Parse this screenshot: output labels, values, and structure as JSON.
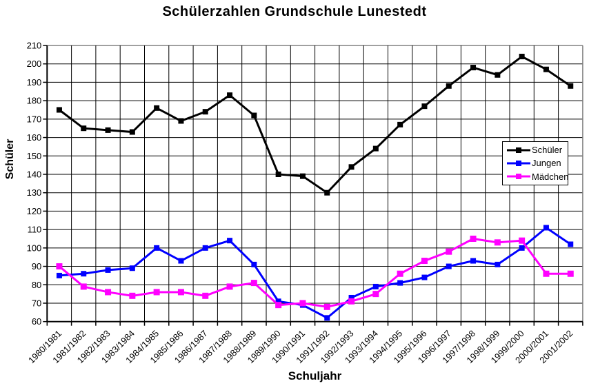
{
  "chart_data": {
    "type": "line",
    "title": "Schülerzahlen Grundschule Lunestedt",
    "xlabel": "Schuljahr",
    "ylabel": "Schüler",
    "ylim": [
      60,
      210
    ],
    "ytick_step": 10,
    "yticks": [
      60,
      70,
      80,
      90,
      100,
      110,
      120,
      130,
      140,
      150,
      160,
      170,
      180,
      190,
      200,
      210
    ],
    "grid": true,
    "legend_position": "middle-right",
    "plot_border_color": "#808080",
    "axis_color": "#000000",
    "gridline_color": "#000000",
    "background_color": "#ffffff",
    "categories": [
      "1980/1981",
      "1981/1982",
      "1982/1983",
      "1983/1984",
      "1984/1985",
      "1985/1986",
      "1986/1987",
      "1987/1988",
      "1988/1989",
      "1989/1990",
      "1990/1991",
      "1991/1992",
      "1992/1993",
      "1993/1994",
      "1994/1995",
      "1995/1996",
      "1996/1997",
      "1997/1998",
      "1998/1999",
      "1999/2000",
      "2000/2001",
      "2001/2002"
    ],
    "series": [
      {
        "name": "Schüler",
        "color": "#000000",
        "marker": "square",
        "marker_size": 8,
        "values": [
          175,
          165,
          164,
          163,
          176,
          169,
          174,
          183,
          172,
          140,
          139,
          130,
          144,
          154,
          167,
          177,
          188,
          198,
          194,
          204,
          197,
          188
        ]
      },
      {
        "name": "Jungen",
        "color": "#0000ff",
        "marker": "square",
        "marker_size": 8,
        "values": [
          85,
          86,
          88,
          89,
          100,
          93,
          100,
          104,
          91,
          71,
          69,
          62,
          73,
          79,
          81,
          84,
          90,
          93,
          91,
          100,
          111,
          102
        ]
      },
      {
        "name": "Mädchen",
        "color": "#ff00ff",
        "marker": "square",
        "marker_size": 9,
        "values": [
          90,
          79,
          76,
          74,
          76,
          76,
          74,
          79,
          81,
          69,
          70,
          68,
          71,
          75,
          86,
          93,
          98,
          105,
          103,
          104,
          86,
          86
        ]
      }
    ]
  }
}
